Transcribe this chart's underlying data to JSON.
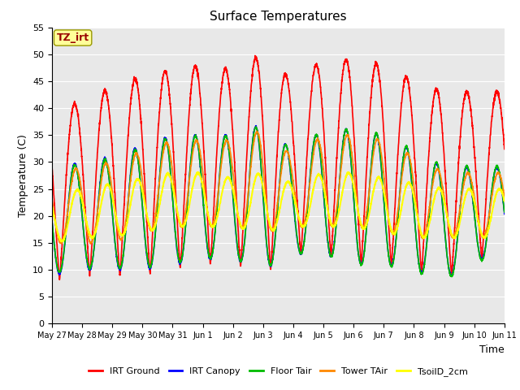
{
  "title": "Surface Temperatures",
  "xlabel": "Time",
  "ylabel": "Temperature (C)",
  "ylim": [
    0,
    55
  ],
  "yticks": [
    0,
    5,
    10,
    15,
    20,
    25,
    30,
    35,
    40,
    45,
    50,
    55
  ],
  "num_days": 15,
  "xtick_labels": [
    "May 27",
    "May 28",
    "May 29",
    "May 30",
    "May 31",
    "Jun 1",
    "Jun 2",
    "Jun 3",
    "Jun 4",
    "Jun 5",
    "Jun 6",
    "Jun 7",
    "Jun 8",
    "Jun 9",
    "Jun 10",
    "Jun 11"
  ],
  "series_order": [
    "IRT Ground",
    "IRT Canopy",
    "Floor Tair",
    "Tower TAir",
    "TsoilD_2cm"
  ],
  "series_colors": {
    "IRT Ground": "#ff0000",
    "IRT Canopy": "#0000ff",
    "Floor Tair": "#00bb00",
    "Tower TAir": "#ff8800",
    "TsoilD_2cm": "#ffff00"
  },
  "series_lw": {
    "IRT Ground": 1.2,
    "IRT Canopy": 1.2,
    "Floor Tair": 1.2,
    "Tower TAir": 1.2,
    "TsoilD_2cm": 1.5
  },
  "background_color": "#e8e8e8",
  "grid_color": "#ffffff",
  "annotation_text": "TZ_irt",
  "annotation_color": "#990000",
  "annotation_bg": "#ffff99",
  "annotation_border": "#999900",
  "fig_width": 6.4,
  "fig_height": 4.8,
  "dpi": 100,
  "irt_ground_peaks": [
    40,
    41,
    44,
    46,
    47,
    48,
    47,
    50,
    45,
    49,
    49,
    48,
    45,
    43,
    43
  ],
  "irt_ground_troughs": [
    8,
    9,
    9,
    9,
    10,
    11,
    11,
    9,
    13,
    13,
    11,
    11,
    10,
    8,
    12
  ],
  "canopy_peaks": [
    29,
    30,
    31,
    33,
    35,
    35,
    35,
    37,
    32,
    36,
    36,
    35,
    32,
    29,
    29
  ],
  "canopy_troughs": [
    9,
    10,
    10,
    10,
    11,
    12,
    12,
    10,
    13,
    13,
    11,
    11,
    10,
    8,
    12
  ],
  "tower_peaks": [
    28,
    29,
    30,
    32,
    34,
    34,
    34,
    36,
    31,
    35,
    35,
    34,
    31,
    28,
    28
  ],
  "tower_troughs": [
    15,
    15,
    15,
    17,
    18,
    18,
    18,
    17,
    18,
    18,
    18,
    17,
    16,
    16,
    16
  ],
  "soil_peaks": [
    24,
    25,
    26,
    27,
    28,
    28,
    27,
    28,
    26,
    28,
    28,
    27,
    26,
    25,
    25
  ],
  "soil_troughs": [
    15,
    16,
    16,
    17,
    18,
    18,
    18,
    17,
    18,
    18,
    18,
    17,
    16,
    16,
    16
  ]
}
